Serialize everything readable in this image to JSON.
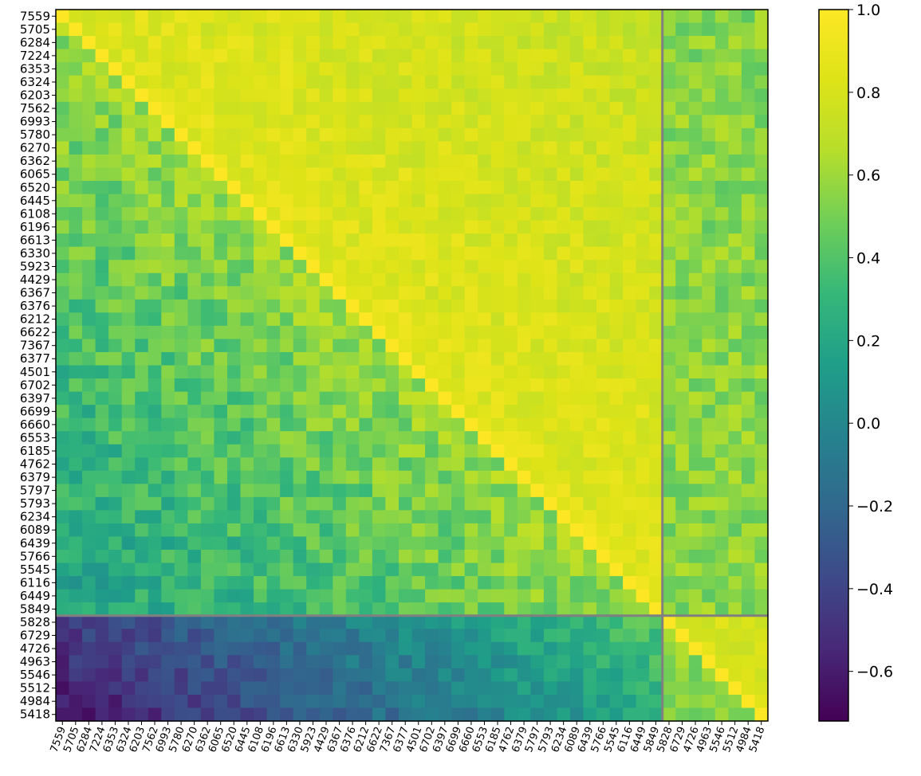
{
  "chart_data": {
    "type": "heatmap",
    "labels": [
      "7559",
      "5705",
      "6284",
      "7224",
      "6353",
      "6324",
      "6203",
      "7562",
      "6993",
      "5780",
      "6270",
      "6362",
      "6065",
      "6520",
      "6445",
      "6108",
      "6196",
      "6613",
      "6330",
      "5923",
      "4429",
      "6367",
      "6376",
      "6212",
      "6622",
      "7367",
      "6377",
      "4501",
      "6702",
      "6397",
      "6699",
      "6660",
      "6553",
      "6185",
      "4762",
      "6379",
      "5797",
      "5793",
      "6234",
      "6089",
      "6439",
      "5766",
      "5545",
      "6116",
      "6449",
      "5849",
      "5828",
      "6729",
      "4726",
      "4963",
      "5546",
      "5512",
      "4984",
      "5418"
    ],
    "group_split_after_label": "5849",
    "colorbar": {
      "colormap": "viridis",
      "min": -0.72,
      "max": 1.0,
      "ticks": [
        1.0,
        0.8,
        0.6,
        0.4,
        0.2,
        0.0,
        -0.2,
        -0.4,
        -0.6
      ],
      "tick_labels": [
        "1.0",
        "0.8",
        "0.6",
        "0.4",
        "0.2",
        "0.0",
        "−0.2",
        "−0.4",
        "−0.6"
      ]
    },
    "estimated_value_pattern": {
      "diagonal": 1.0,
      "upper_block1_near_diagonal": 0.85,
      "upper_block1_far": 0.72,
      "lower_block1_near_diagonal": 0.6,
      "lower_block1_far": 0.15,
      "cross_block_upper": 0.55,
      "cross_block_lower_first_rows": -0.45,
      "cross_block_lower_last_rows": 0.4,
      "block2_upper": 0.8,
      "block2_lower": 0.55
    }
  }
}
